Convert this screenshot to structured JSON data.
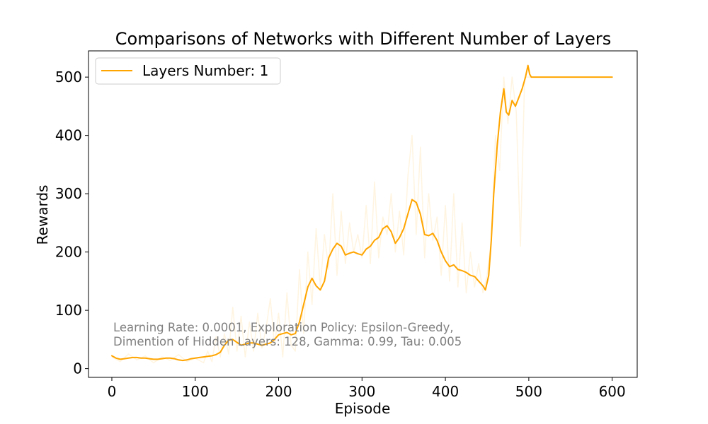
{
  "chart_data": {
    "type": "line",
    "title": "Comparisons of Networks with Different Number of Layers",
    "xlabel": "Episode",
    "ylabel": "Rewards",
    "xlim": [
      -28,
      630
    ],
    "ylim": [
      -15,
      545
    ],
    "xticks": [
      0,
      100,
      200,
      300,
      400,
      500,
      600
    ],
    "yticks": [
      0,
      100,
      200,
      300,
      400,
      500
    ],
    "grid": false,
    "legend": {
      "position": "top-left",
      "entries": [
        "Layers Number: 1"
      ]
    },
    "annotation": [
      "Learning Rate: 0.0001, Exploration Policy: Epsilon-Greedy,",
      "Dimention of Hidden Layers: 128, Gamma: 0.99, Tau: 0.005"
    ],
    "colors": {
      "series": "#ffa500",
      "raw": "#ffa500",
      "annotation": "#808080"
    },
    "series": [
      {
        "name": "Layers Number: 1",
        "style": "smoothed",
        "x": [
          0,
          5,
          10,
          15,
          20,
          25,
          30,
          35,
          40,
          45,
          50,
          55,
          60,
          65,
          70,
          75,
          80,
          85,
          90,
          95,
          100,
          105,
          110,
          115,
          120,
          125,
          130,
          135,
          140,
          145,
          150,
          155,
          160,
          165,
          170,
          175,
          180,
          185,
          190,
          195,
          200,
          205,
          210,
          215,
          220,
          225,
          230,
          235,
          240,
          245,
          250,
          255,
          260,
          265,
          270,
          275,
          280,
          285,
          290,
          295,
          300,
          305,
          310,
          315,
          320,
          325,
          330,
          335,
          340,
          345,
          350,
          355,
          360,
          365,
          370,
          375,
          380,
          385,
          390,
          395,
          400,
          405,
          410,
          415,
          420,
          425,
          430,
          435,
          440,
          445,
          448,
          452,
          455,
          458,
          462,
          466,
          470,
          473,
          476,
          480,
          484,
          488,
          492,
          496,
          499,
          501,
          503,
          510,
          520,
          540,
          560,
          580,
          600
        ],
        "y": [
          22,
          18,
          16,
          17,
          18,
          19,
          19,
          18,
          18,
          17,
          16,
          16,
          17,
          18,
          18,
          17,
          15,
          14,
          15,
          17,
          18,
          19,
          20,
          21,
          22,
          24,
          28,
          40,
          49,
          50,
          45,
          40,
          42,
          44,
          44,
          42,
          40,
          42,
          44,
          50,
          58,
          60,
          62,
          58,
          60,
          80,
          110,
          140,
          155,
          142,
          135,
          150,
          190,
          205,
          215,
          210,
          195,
          198,
          200,
          197,
          195,
          205,
          210,
          220,
          225,
          240,
          245,
          235,
          215,
          225,
          240,
          265,
          290,
          285,
          265,
          230,
          228,
          232,
          220,
          200,
          185,
          175,
          178,
          170,
          168,
          165,
          160,
          158,
          150,
          142,
          135,
          160,
          220,
          300,
          380,
          440,
          480,
          440,
          435,
          460,
          450,
          465,
          480,
          500,
          520,
          505,
          500,
          500,
          500,
          500,
          500,
          500,
          500
        ]
      },
      {
        "name": "",
        "style": "raw",
        "x": [
          0,
          10,
          20,
          30,
          40,
          50,
          60,
          70,
          80,
          90,
          100,
          110,
          115,
          120,
          125,
          130,
          135,
          140,
          145,
          150,
          155,
          160,
          165,
          170,
          175,
          180,
          185,
          190,
          195,
          200,
          205,
          210,
          215,
          220,
          225,
          230,
          235,
          240,
          245,
          250,
          255,
          260,
          265,
          270,
          275,
          280,
          285,
          290,
          295,
          300,
          305,
          310,
          315,
          320,
          325,
          330,
          335,
          340,
          345,
          350,
          355,
          360,
          365,
          370,
          375,
          380,
          385,
          390,
          395,
          400,
          405,
          410,
          415,
          420,
          425,
          430,
          435,
          440,
          445,
          450,
          455,
          460,
          465,
          470,
          475,
          480,
          485,
          490,
          495,
          500,
          600
        ],
        "y": [
          20,
          12,
          25,
          15,
          22,
          10,
          20,
          14,
          24,
          12,
          18,
          10,
          30,
          12,
          55,
          20,
          60,
          25,
          105,
          30,
          90,
          20,
          80,
          30,
          95,
          35,
          70,
          120,
          40,
          95,
          20,
          130,
          40,
          30,
          170,
          60,
          200,
          110,
          240,
          140,
          230,
          170,
          300,
          160,
          270,
          180,
          250,
          200,
          230,
          190,
          280,
          180,
          320,
          190,
          260,
          230,
          300,
          200,
          270,
          195,
          330,
          400,
          230,
          380,
          190,
          300,
          220,
          260,
          160,
          280,
          150,
          300,
          140,
          250,
          130,
          200,
          140,
          180,
          130,
          160,
          220,
          400,
          340,
          500,
          420,
          500,
          440,
          210,
          500,
          500,
          500
        ]
      }
    ]
  }
}
